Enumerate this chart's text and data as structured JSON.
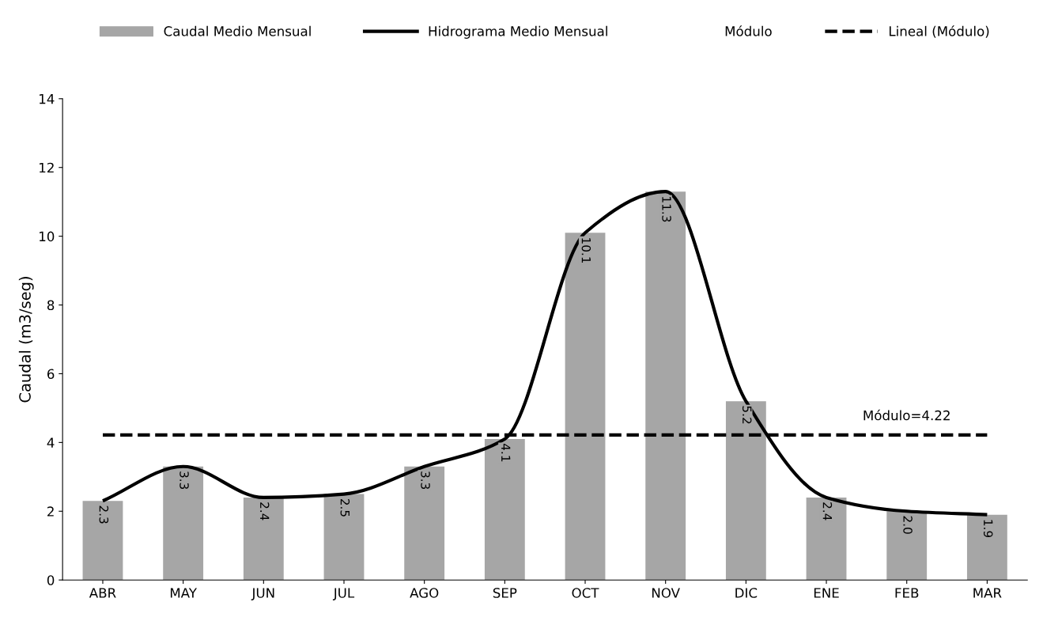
{
  "chart_data": {
    "type": "bar",
    "ylabel": "Caudal (m3/seg)",
    "categories": [
      "ABR",
      "MAY",
      "JUN",
      "JUL",
      "AGO",
      "SEP",
      "OCT",
      "NOV",
      "DIC",
      "ENE",
      "FEB",
      "MAR"
    ],
    "series": [
      {
        "name": "Caudal Medio Mensual",
        "color": "#a6a6a6",
        "values": [
          2.3,
          3.3,
          2.4,
          2.5,
          3.3,
          4.1,
          10.1,
          11.3,
          5.2,
          2.4,
          2.0,
          1.9
        ],
        "value_labels": [
          "2.3",
          "3.3",
          "2.4",
          "2.5",
          "3.3",
          "4.1",
          "10.1",
          "11.3",
          "5.2",
          "2.4",
          "2.0",
          "1.9"
        ]
      },
      {
        "name": "Hidrograma Medio Mensual",
        "type": "line",
        "color": "#000000",
        "line_style": "solid",
        "values": [
          2.3,
          3.3,
          2.4,
          2.5,
          3.3,
          4.1,
          10.1,
          11.3,
          5.2,
          2.4,
          2.0,
          1.9
        ]
      },
      {
        "name": "Lineal (Módulo)",
        "type": "line",
        "color": "#000000",
        "line_style": "dashed",
        "values": [
          4.22,
          4.22,
          4.22,
          4.22,
          4.22,
          4.22,
          4.22,
          4.22,
          4.22,
          4.22,
          4.22,
          4.22
        ]
      }
    ],
    "annotations": [
      "Módulo",
      {
        "text": "Módulo=4.22",
        "x": "FEB",
        "y": 4.22
      }
    ],
    "ylim": [
      0,
      14
    ],
    "yticks": [
      0,
      2,
      4,
      6,
      8,
      10,
      12,
      14
    ],
    "grid": false,
    "legend": "top",
    "marker": "none"
  }
}
